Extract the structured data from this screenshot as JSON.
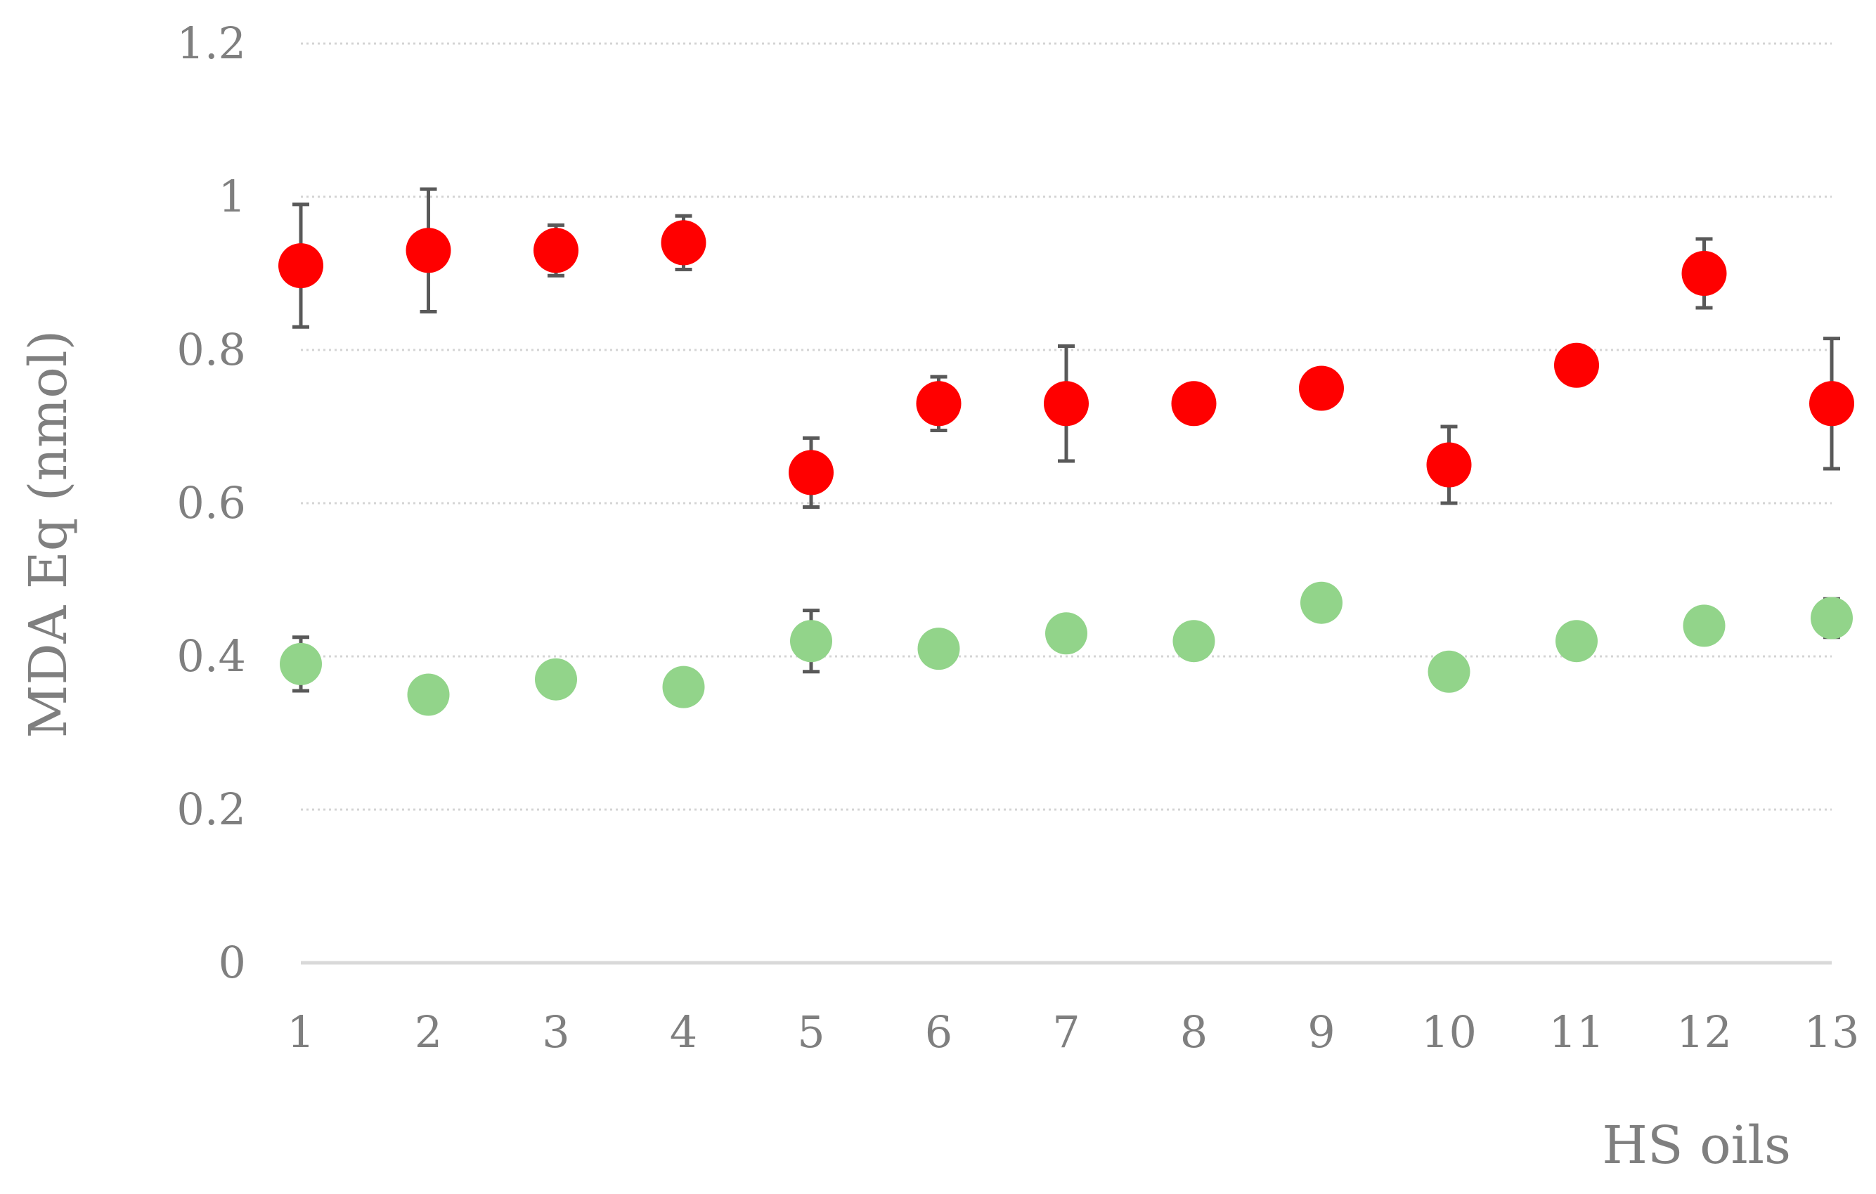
{
  "chart_data": {
    "type": "scatter",
    "xlabel": "HS oils",
    "ylabel": "MDA Eq (nmol)",
    "ylim": [
      0,
      1.2
    ],
    "xlim": [
      1,
      13
    ],
    "y_ticks": [
      0,
      0.2,
      0.4,
      0.6,
      0.8,
      1,
      1.2
    ],
    "y_tick_labels": [
      "0",
      "0.2",
      "0.4",
      "0.6",
      "0.8",
      "1",
      "1.2"
    ],
    "x_ticks": [
      1,
      2,
      3,
      4,
      5,
      6,
      7,
      8,
      9,
      10,
      11,
      12,
      13
    ],
    "x_tick_labels": [
      "1",
      "2",
      "3",
      "4",
      "5",
      "6",
      "7",
      "8",
      "9",
      "10",
      "11",
      "12",
      "13"
    ],
    "grid": "horizontal dotted",
    "legend": "none",
    "series": [
      {
        "color": "#ff0000",
        "x": [
          1,
          2,
          3,
          4,
          5,
          6,
          7,
          8,
          9,
          10,
          11,
          12,
          13
        ],
        "y": [
          0.91,
          0.93,
          0.93,
          0.94,
          0.64,
          0.73,
          0.73,
          0.73,
          0.75,
          0.65,
          0.78,
          0.9,
          0.73
        ],
        "error": [
          0.08,
          0.08,
          0.033,
          0.035,
          0.045,
          0.035,
          0.075,
          0.0,
          0.0,
          0.05,
          0.025,
          0.045,
          0.085
        ]
      },
      {
        "color": "#92d48a",
        "x": [
          1,
          2,
          3,
          4,
          5,
          6,
          7,
          8,
          9,
          10,
          11,
          12,
          13
        ],
        "y": [
          0.39,
          0.35,
          0.37,
          0.36,
          0.42,
          0.41,
          0.43,
          0.42,
          0.47,
          0.38,
          0.42,
          0.44,
          0.45
        ],
        "error": [
          0.035,
          0.015,
          0.0,
          0.0,
          0.04,
          0.0,
          0.0,
          0.0,
          0.0,
          0.0,
          0.02,
          0.0,
          0.025
        ]
      }
    ]
  }
}
